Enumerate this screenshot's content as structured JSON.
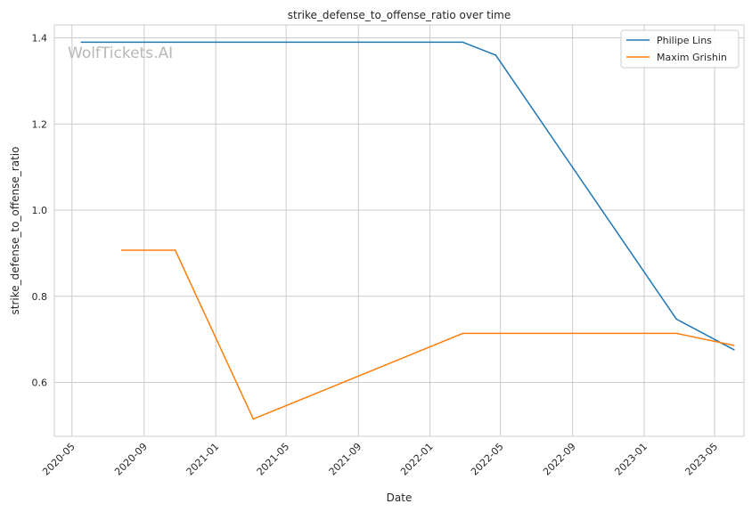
{
  "chart_data": {
    "type": "line",
    "title": "strike_defense_to_offense_ratio over time",
    "xlabel": "Date",
    "ylabel": "strike_defense_to_offense_ratio",
    "watermark": "WolfTickets.AI",
    "x_ticks": [
      "2020-05",
      "2020-09",
      "2021-01",
      "2021-05",
      "2021-09",
      "2022-01",
      "2022-05",
      "2022-09",
      "2023-01",
      "2023-05"
    ],
    "y_ticks": [
      "0.6",
      "0.8",
      "1.0",
      "1.2",
      "1.4"
    ],
    "xlim": [
      "2020-04-01",
      "2023-06-20"
    ],
    "ylim": [
      0.475,
      1.43
    ],
    "grid": true,
    "legend_position": "top-right",
    "series": [
      {
        "name": "Philipe Lins",
        "color": "#1f77b4",
        "points": [
          {
            "x": "2020-05-17",
            "y": 1.39
          },
          {
            "x": "2022-02-26",
            "y": 1.39
          },
          {
            "x": "2022-04-23",
            "y": 1.36
          },
          {
            "x": "2023-02-25",
            "y": 0.747
          },
          {
            "x": "2023-06-03",
            "y": 0.676
          }
        ]
      },
      {
        "name": "Maxim Grishin",
        "color": "#ff7f0e",
        "points": [
          {
            "x": "2020-07-25",
            "y": 0.907
          },
          {
            "x": "2020-10-24",
            "y": 0.907
          },
          {
            "x": "2021-03-06",
            "y": 0.515
          },
          {
            "x": "2022-02-26",
            "y": 0.714
          },
          {
            "x": "2023-02-25",
            "y": 0.714
          },
          {
            "x": "2023-06-03",
            "y": 0.686
          }
        ]
      }
    ]
  }
}
